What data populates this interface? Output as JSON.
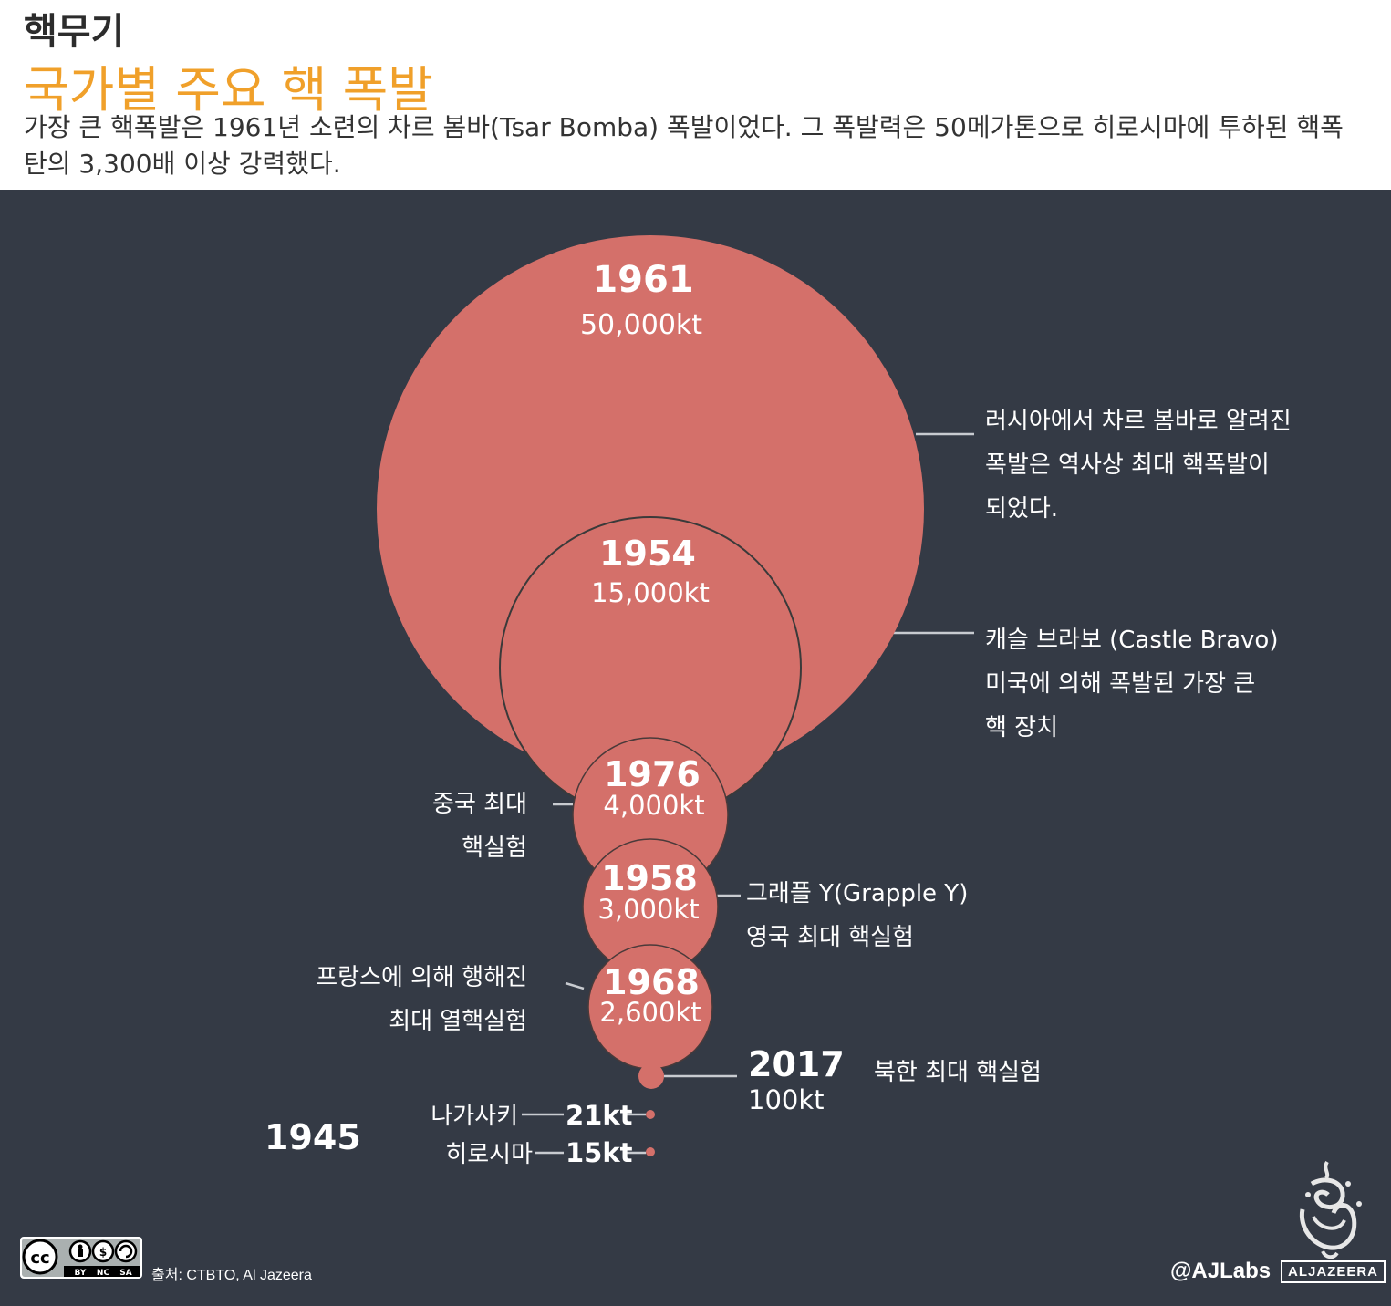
{
  "header": {
    "kicker": "핵무기",
    "title": "국가별 주요 핵 폭발",
    "subtitle": "가장 큰 핵폭발은 1961년 소련의 차르 봄바(Tsar Bomba) 폭발이었다. 그 폭발력은 50메가톤으로 히로시마에 투하된 핵폭탄의 3,300배 이상 강력했다."
  },
  "colors": {
    "background": "#343a45",
    "bubble": "#d4706a",
    "title": "#f0a02a"
  },
  "chart_data": {
    "type": "bubble",
    "unit": "kt",
    "bubbles": [
      {
        "id": "b1961",
        "year": "1961",
        "yield_kt": 50000,
        "label": "50,000kt",
        "note": [
          "러시아에서 차르 봄바로 알려진",
          "폭발은 역사상 최대 핵폭발이",
          "되었다."
        ]
      },
      {
        "id": "b1954",
        "year": "1954",
        "yield_kt": 15000,
        "label": "15,000kt",
        "note": [
          "캐슬 브라보 (Castle Bravo)",
          "미국에 의해 폭발된 가장 큰",
          "핵 장치"
        ]
      },
      {
        "id": "b1976",
        "year": "1976",
        "yield_kt": 4000,
        "label": "4,000kt",
        "note": [
          "중국 최대",
          "핵실험"
        ]
      },
      {
        "id": "b1958",
        "year": "1958",
        "yield_kt": 3000,
        "label": "3,000kt",
        "note": [
          "그래플 Y(Grapple Y)",
          "영국 최대 핵실험"
        ]
      },
      {
        "id": "b1968",
        "year": "1968",
        "yield_kt": 2600,
        "label": "2,600kt",
        "note": [
          "프랑스에 의해 행해진",
          "최대 열핵실험"
        ]
      },
      {
        "id": "b2017",
        "year": "2017",
        "yield_kt": 100,
        "label": "100kt",
        "note": [
          "북한 최대 핵실험"
        ]
      },
      {
        "id": "b1945n",
        "year": "",
        "yield_kt": 21,
        "label": "21kt",
        "note": [
          "나가사키"
        ]
      },
      {
        "id": "b1945h",
        "year": "",
        "yield_kt": 15,
        "label": "15kt",
        "note": [
          "히로시마"
        ]
      }
    ],
    "year_1945": "1945"
  },
  "footer": {
    "license_badge": [
      "cc",
      "BY",
      "NC",
      "SA"
    ],
    "source": "출처: CTBTO, Al Jazeera",
    "handle": "@AJLabs",
    "brand": "ALJAZEERA"
  }
}
